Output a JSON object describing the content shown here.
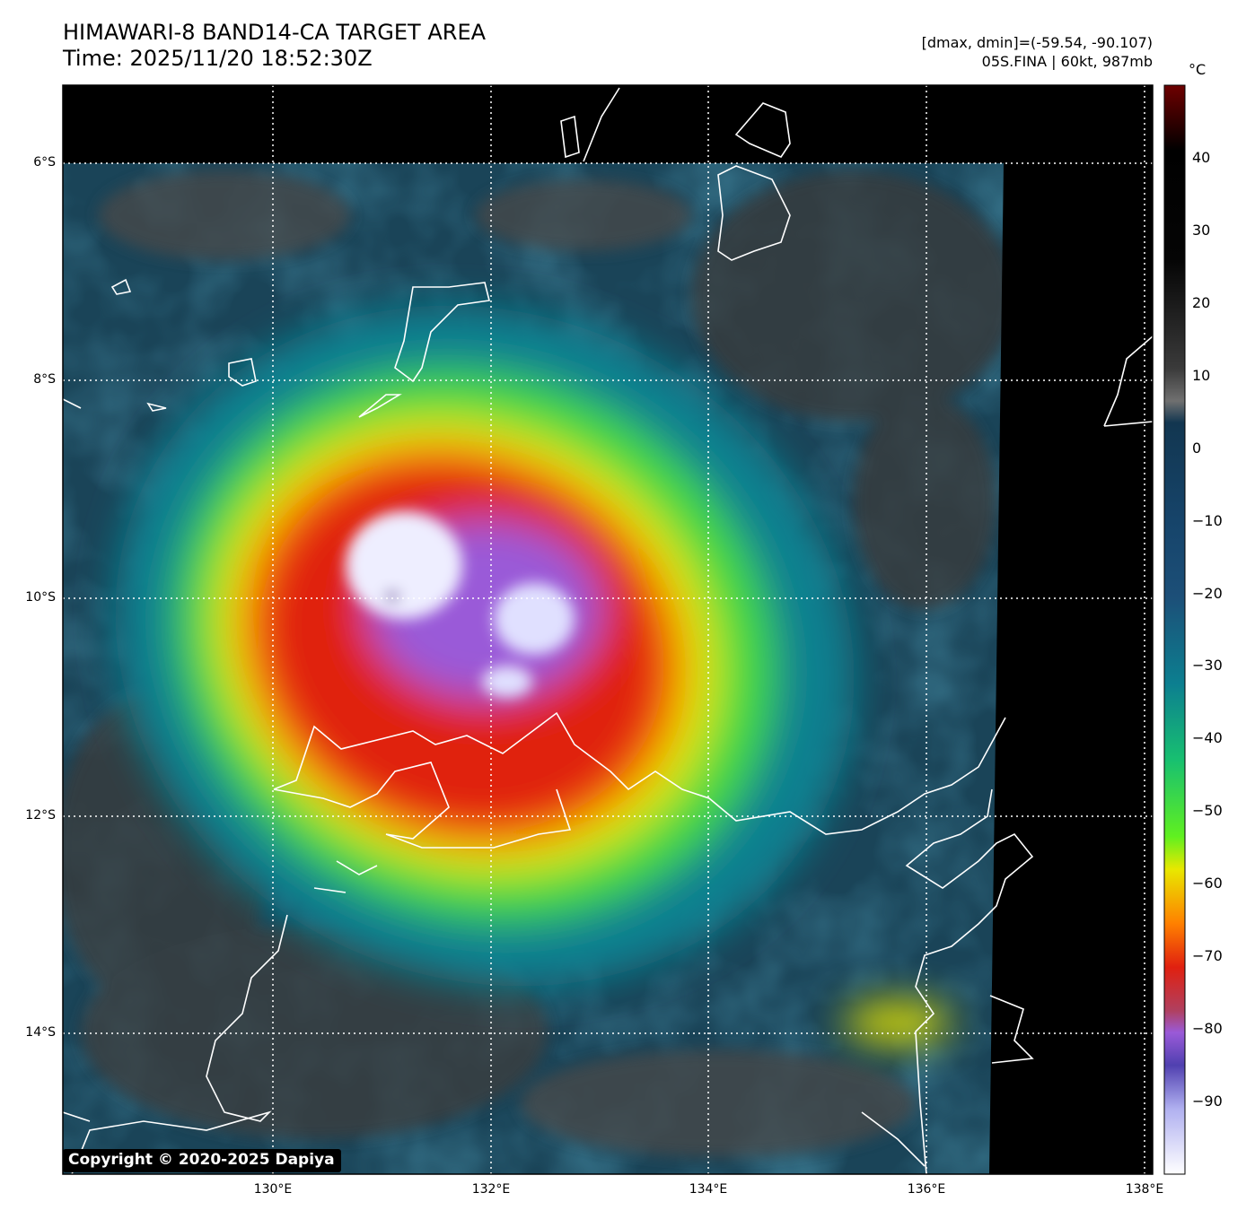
{
  "header": {
    "title": "HIMAWARI-8 BAND14-CA TARGET AREA",
    "time": "Time: 2025/11/20 18:52:30Z",
    "dminmax": "[dmax, dmin]=(-59.54, -90.107)",
    "storm": "05S.FINA | 60kt, 987mb"
  },
  "map": {
    "lon_range": [
      128.07,
      138.07
    ],
    "lat_range": [
      -15.3,
      -5.28
    ],
    "storm_center": {
      "lon": 131.1,
      "lat": -9.9
    },
    "lat_ticks": [
      {
        "v": -6,
        "label": "6°S"
      },
      {
        "v": -8,
        "label": "8°S"
      },
      {
        "v": -10,
        "label": "10°S"
      },
      {
        "v": -12,
        "label": "12°S"
      },
      {
        "v": -14,
        "label": "14°S"
      }
    ],
    "lon_ticks": [
      {
        "v": 130,
        "label": "130°E"
      },
      {
        "v": 132,
        "label": "132°E"
      },
      {
        "v": 134,
        "label": "134°E"
      },
      {
        "v": 136,
        "label": "136°E"
      },
      {
        "v": 138,
        "label": "138°E"
      }
    ],
    "copyright": "Copyright © 2020-2025 Dapiya"
  },
  "colorbar": {
    "unit": "°C",
    "range": [
      -100,
      50
    ],
    "ticks": [
      {
        "v": 40,
        "label": "40"
      },
      {
        "v": 30,
        "label": "30"
      },
      {
        "v": 20,
        "label": "20"
      },
      {
        "v": 10,
        "label": "10"
      },
      {
        "v": 0,
        "label": "0"
      },
      {
        "v": -10,
        "label": "−10"
      },
      {
        "v": -20,
        "label": "−20"
      },
      {
        "v": -30,
        "label": "−30"
      },
      {
        "v": -40,
        "label": "−40"
      },
      {
        "v": -50,
        "label": "−50"
      },
      {
        "v": -60,
        "label": "−60"
      },
      {
        "v": -70,
        "label": "−70"
      },
      {
        "v": -80,
        "label": "−80"
      },
      {
        "v": -90,
        "label": "−90"
      }
    ],
    "colors": {
      "warm": "#6e0000",
      "black": "#000000",
      "grey": "#6a6a6a",
      "navy": "#0f3550",
      "teal": "#0b8090",
      "green": "#3fd93c",
      "yellow": "#e8e800",
      "orange": "#ff7a00",
      "red": "#e0200a",
      "purple": "#9a5ad8",
      "white": "#f4f4ff"
    }
  }
}
